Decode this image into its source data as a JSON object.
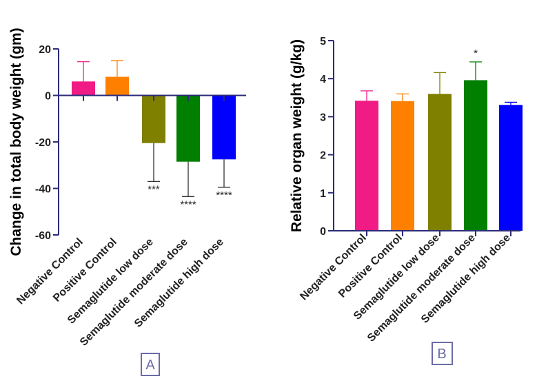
{
  "chart_data": [
    {
      "type": "bar",
      "panel": "A",
      "ylabel": "Change in total body weight (gm)",
      "xlabel": "",
      "categories": [
        "Negative Control",
        "Positive Control",
        "Semaglutide low dose",
        "Semaglutide moderate dose",
        "Semaglutide high dose"
      ],
      "values": [
        6,
        8,
        -20.5,
        -28.5,
        -27.5
      ],
      "errors": [
        8.5,
        7,
        16.5,
        15,
        12
      ],
      "colors": [
        "#f01b84",
        "#ff8000",
        "#7f7f00",
        "#007f00",
        "#0000ff"
      ],
      "annotations": [
        "",
        "",
        "***",
        "****",
        "****"
      ],
      "ylim": [
        -60,
        20
      ],
      "yticks": [
        -60,
        -40,
        -20,
        0,
        20
      ]
    },
    {
      "type": "bar",
      "panel": "B",
      "ylabel": "Relative organ weight (g/kg)",
      "xlabel": "",
      "categories": [
        "Negative Control",
        "Positive Control",
        "Semaglutide low dose",
        "Semaglutide moderate dose",
        "Semaglutide high dose"
      ],
      "values": [
        3.42,
        3.41,
        3.6,
        3.96,
        3.31
      ],
      "errors": [
        0.26,
        0.19,
        0.56,
        0.48,
        0.07
      ],
      "colors": [
        "#f01b84",
        "#ff8000",
        "#7f7f00",
        "#007f00",
        "#0000ff"
      ],
      "annotations": [
        "",
        "",
        "",
        "*",
        ""
      ],
      "ylim": [
        0,
        5
      ],
      "yticks": [
        0,
        1,
        2,
        3,
        4,
        5
      ]
    }
  ],
  "panel_labels": {
    "a": "A",
    "b": "B"
  },
  "colors": {
    "axis": "#2b2b7a",
    "errorbar": "#333333"
  }
}
